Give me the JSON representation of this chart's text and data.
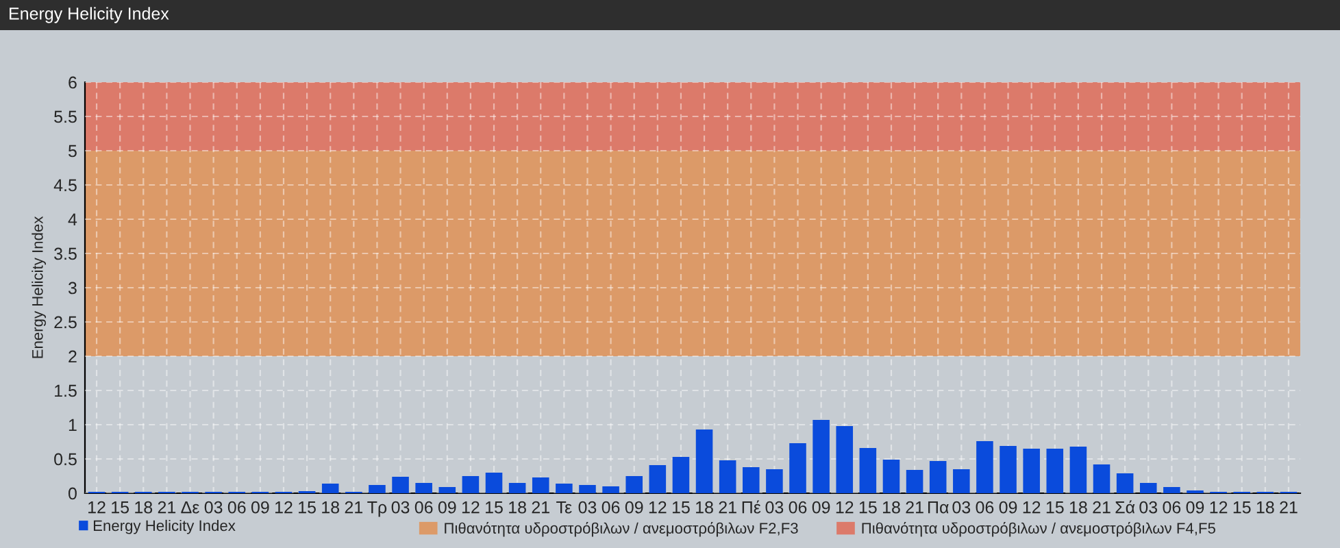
{
  "chart_data": {
    "type": "bar",
    "title": "Energy Helicity Index",
    "ylabel": "Energy Helicity Index",
    "categories": [
      "12",
      "15",
      "18",
      "21",
      "Δε",
      "03",
      "06",
      "09",
      "12",
      "15",
      "18",
      "21",
      "Τρ",
      "03",
      "06",
      "09",
      "12",
      "15",
      "18",
      "21",
      "Τε",
      "03",
      "06",
      "09",
      "12",
      "15",
      "18",
      "21",
      "Πέ",
      "03",
      "06",
      "09",
      "12",
      "15",
      "18",
      "21",
      "Πα",
      "03",
      "06",
      "09",
      "12",
      "15",
      "18",
      "21",
      "Σά",
      "03",
      "06",
      "09",
      "12",
      "15",
      "18",
      "21"
    ],
    "series": [
      {
        "name": "Energy Helicity Index",
        "color": "#0a4bdc",
        "values": [
          0.02,
          0.02,
          0.02,
          0.02,
          0.02,
          0.02,
          0.02,
          0.02,
          0.02,
          0.03,
          0.14,
          0.02,
          0.12,
          0.24,
          0.15,
          0.09,
          0.25,
          0.3,
          0.15,
          0.23,
          0.14,
          0.12,
          0.1,
          0.25,
          0.41,
          0.53,
          0.93,
          0.48,
          0.38,
          0.35,
          0.73,
          1.07,
          0.98,
          0.66,
          0.49,
          0.34,
          0.47,
          0.35,
          0.76,
          0.69,
          0.65,
          0.65,
          0.68,
          0.42,
          0.29,
          0.15,
          0.09,
          0.04,
          0.02,
          0.02,
          0.02,
          0.02
        ]
      }
    ],
    "ylim": [
      0,
      6
    ],
    "yticks": [
      0,
      0.5,
      1,
      1.5,
      2,
      2.5,
      3,
      3.5,
      4,
      4.5,
      5,
      5.5,
      6
    ],
    "bands": [
      {
        "axis": "y",
        "from": 2,
        "to": 5,
        "label": "Πιθανότητα υδροστρόβιλων / ανεμοστρόβιλων F2,F3",
        "color": "#dc9a68"
      },
      {
        "axis": "y",
        "from": 5,
        "to": 6,
        "label": "Πιθανότητα υδροστρόβιλων / ανεμοστρόβιλων F4,F5",
        "color": "#dc7a6a"
      }
    ],
    "grid": true,
    "legend": "bottom left"
  }
}
